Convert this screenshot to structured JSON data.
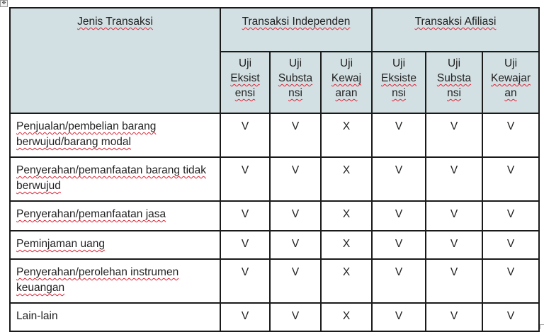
{
  "table": {
    "header_main": "Jenis Transaksi",
    "groups": [
      "Transaksi Independen",
      "Transaksi Afiliasi"
    ],
    "subheaders": [
      [
        "Uji",
        "Eksist",
        "ensi"
      ],
      [
        "Uji",
        "Substa",
        "nsi"
      ],
      [
        "Uji",
        "Kewaj",
        "aran"
      ],
      [
        "Uji",
        "Eksiste",
        "nsi"
      ],
      [
        "Uji",
        "Substa",
        "nsi"
      ],
      [
        "Uji",
        "Kewajar",
        "an"
      ]
    ],
    "rows": [
      {
        "label": "Penjualan/pembelian barang berwujud/barang modal",
        "values": [
          "V",
          "V",
          "X",
          "V",
          "V",
          "V"
        ]
      },
      {
        "label": "Penyerahan/pemanfaatan barang tidak berwujud",
        "values": [
          "V",
          "V",
          "X",
          "V",
          "V",
          "V"
        ]
      },
      {
        "label": "Penyerahan/pemanfaatan jasa",
        "values": [
          "V",
          "V",
          "X",
          "V",
          "V",
          "V"
        ]
      },
      {
        "label": "Peminjaman uang",
        "values": [
          "V",
          "V",
          "X",
          "V",
          "V",
          "V"
        ]
      },
      {
        "label": "Penyerahan/perolehan instrumen keuangan",
        "values": [
          "V",
          "V",
          "X",
          "V",
          "V",
          "V"
        ]
      },
      {
        "label": "Lain-lain",
        "values": [
          "V",
          "V",
          "X",
          "V",
          "V",
          "V"
        ]
      }
    ]
  },
  "colors": {
    "header_bg": "#d3e0e3",
    "border": "#1a1a1a",
    "spellcheck": "#dd2233"
  },
  "icons": {
    "table_anchor": "move-handle-icon"
  }
}
